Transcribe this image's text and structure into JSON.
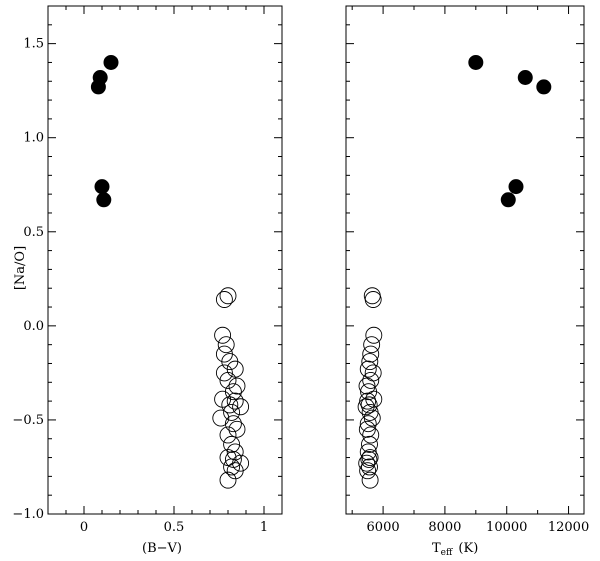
{
  "chart_data": [
    {
      "type": "scatter",
      "ylabel": "[Na/O]",
      "xlabel": "(B−V)",
      "xlim": [
        -0.2,
        1.1
      ],
      "ylim": [
        -1.0,
        1.7
      ],
      "x_ticks": [
        0,
        0.5,
        1
      ],
      "x_tick_labels": [
        "0",
        "0.5",
        "1"
      ],
      "y_ticks": [
        -1.0,
        -0.5,
        0.0,
        0.5,
        1.0,
        1.5
      ],
      "y_tick_labels": [
        "−1.0",
        "−0.5",
        "0.0",
        "0.5",
        "1.0",
        "1.5"
      ],
      "series": [
        {
          "marker": "filled-circle",
          "points": [
            [
              0.08,
              1.27
            ],
            [
              0.09,
              1.32
            ],
            [
              0.15,
              1.4
            ],
            [
              0.1,
              0.74
            ],
            [
              0.11,
              0.67
            ]
          ]
        },
        {
          "marker": "open-circle",
          "points": [
            [
              0.8,
              0.16
            ],
            [
              0.78,
              0.14
            ],
            [
              0.77,
              -0.05
            ],
            [
              0.79,
              -0.1
            ],
            [
              0.78,
              -0.15
            ],
            [
              0.81,
              -0.19
            ],
            [
              0.84,
              -0.23
            ],
            [
              0.78,
              -0.25
            ],
            [
              0.8,
              -0.29
            ],
            [
              0.85,
              -0.32
            ],
            [
              0.83,
              -0.35
            ],
            [
              0.77,
              -0.39
            ],
            [
              0.84,
              -0.4
            ],
            [
              0.81,
              -0.42
            ],
            [
              0.87,
              -0.43
            ],
            [
              0.82,
              -0.46
            ],
            [
              0.76,
              -0.49
            ],
            [
              0.83,
              -0.52
            ],
            [
              0.85,
              -0.55
            ],
            [
              0.8,
              -0.58
            ],
            [
              0.82,
              -0.63
            ],
            [
              0.84,
              -0.67
            ],
            [
              0.8,
              -0.7
            ],
            [
              0.83,
              -0.71
            ],
            [
              0.87,
              -0.73
            ],
            [
              0.82,
              -0.75
            ],
            [
              0.84,
              -0.77
            ],
            [
              0.8,
              -0.82
            ]
          ]
        }
      ]
    },
    {
      "type": "scatter",
      "xlabel": "T",
      "xlabel_sub": "eff",
      "xlabel_unit": "(K)",
      "xlim": [
        4800,
        12500
      ],
      "ylim": [
        -1.0,
        1.7
      ],
      "x_ticks": [
        6000,
        8000,
        10000,
        12000
      ],
      "x_tick_labels": [
        "6000",
        "8000",
        "10000",
        "12000"
      ],
      "y_ticks": [
        -1.0,
        -0.5,
        0.0,
        0.5,
        1.0,
        1.5
      ],
      "series": [
        {
          "marker": "filled-circle",
          "points": [
            [
              9000,
              1.4
            ],
            [
              10600,
              1.32
            ],
            [
              11200,
              1.27
            ],
            [
              10300,
              0.74
            ],
            [
              10050,
              0.67
            ]
          ]
        },
        {
          "marker": "open-circle",
          "points": [
            [
              5650,
              0.16
            ],
            [
              5680,
              0.14
            ],
            [
              5700,
              -0.05
            ],
            [
              5630,
              -0.1
            ],
            [
              5600,
              -0.15
            ],
            [
              5570,
              -0.19
            ],
            [
              5520,
              -0.23
            ],
            [
              5680,
              -0.25
            ],
            [
              5600,
              -0.29
            ],
            [
              5480,
              -0.32
            ],
            [
              5530,
              -0.35
            ],
            [
              5700,
              -0.39
            ],
            [
              5500,
              -0.4
            ],
            [
              5550,
              -0.42
            ],
            [
              5450,
              -0.43
            ],
            [
              5580,
              -0.46
            ],
            [
              5650,
              -0.49
            ],
            [
              5520,
              -0.52
            ],
            [
              5490,
              -0.55
            ],
            [
              5600,
              -0.58
            ],
            [
              5560,
              -0.63
            ],
            [
              5520,
              -0.67
            ],
            [
              5580,
              -0.7
            ],
            [
              5540,
              -0.71
            ],
            [
              5470,
              -0.73
            ],
            [
              5560,
              -0.75
            ],
            [
              5500,
              -0.77
            ],
            [
              5580,
              -0.82
            ]
          ]
        }
      ]
    }
  ]
}
